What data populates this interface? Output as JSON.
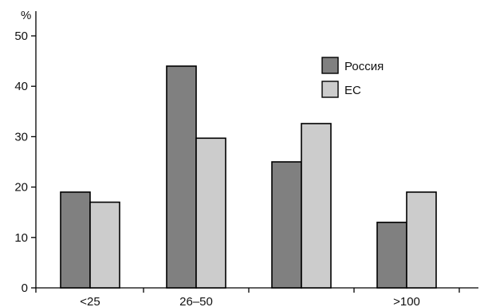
{
  "chart_data": {
    "type": "bar",
    "ylabel": "%",
    "ylim": [
      0,
      50
    ],
    "yticks": [
      0,
      10,
      20,
      30,
      40,
      50
    ],
    "categories": [
      "<25",
      "26–50",
      "",
      ">100"
    ],
    "series": [
      {
        "name": "Россия",
        "color": "#808080",
        "values": [
          19,
          44,
          25,
          13
        ]
      },
      {
        "name": "ЕС",
        "color": "#cccccc",
        "values": [
          17,
          29.7,
          32.6,
          19
        ]
      }
    ],
    "legend_position": "top-right",
    "grid": false
  }
}
